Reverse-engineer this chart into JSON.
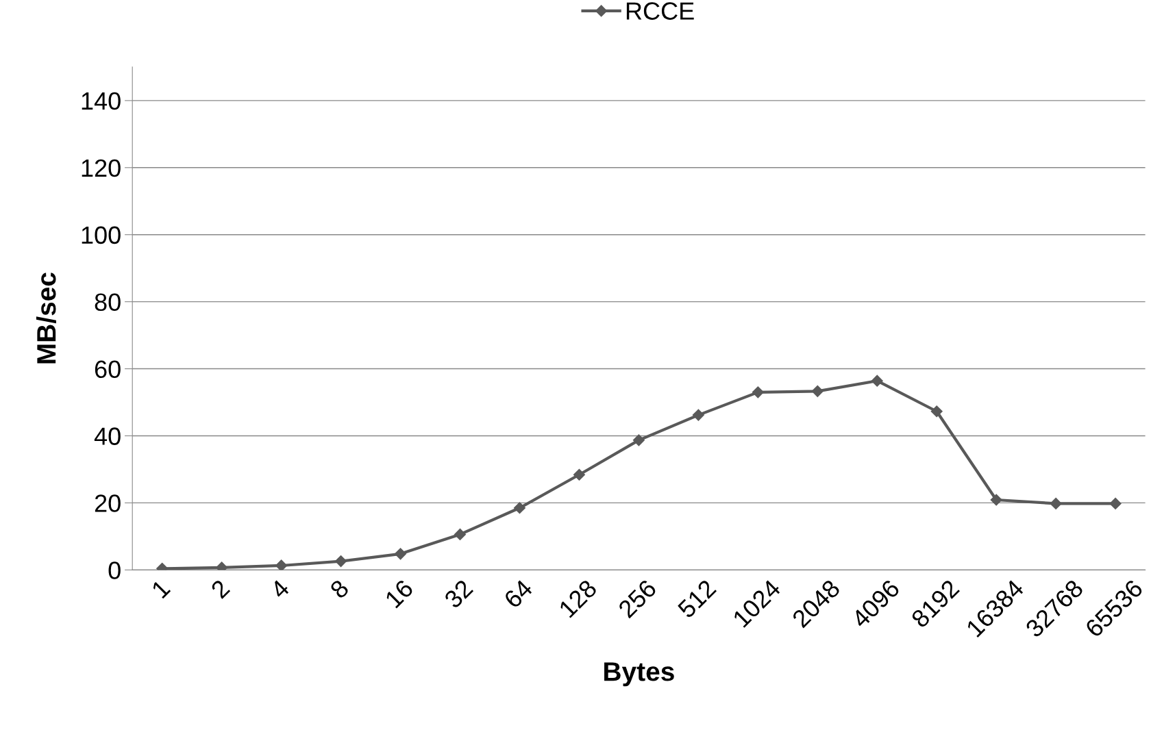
{
  "chart_data": {
    "type": "line",
    "xlabel": "Bytes",
    "ylabel": "MB/sec",
    "categories": [
      "1",
      "2",
      "4",
      "8",
      "16",
      "32",
      "64",
      "128",
      "256",
      "512",
      "1024",
      "2048",
      "4096",
      "8192",
      "16384",
      "32768",
      "65536"
    ],
    "series": [
      {
        "name": "RCCE",
        "color": "#595959",
        "values": [
          0.4,
          0.7,
          1.3,
          2.6,
          4.8,
          10.6,
          18.5,
          28.4,
          38.7,
          46.2,
          53.0,
          53.3,
          56.4,
          47.3,
          20.9,
          19.8,
          19.8
        ]
      }
    ],
    "ylim": [
      0,
      150
    ],
    "yticks": [
      0,
      20,
      40,
      60,
      80,
      100,
      120,
      140
    ],
    "grid": "y",
    "legend": "top",
    "marker": "diamond",
    "line_style": "solid"
  }
}
